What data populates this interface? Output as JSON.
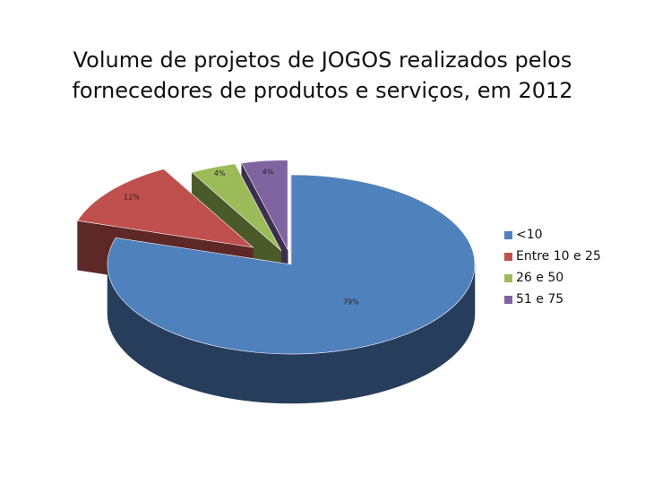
{
  "chart_data": {
    "type": "pie",
    "title": "Volume de projetos de JOGOS realizados pelos fornecedores de produtos e serviços, em 2012",
    "title_lines": [
      "Volume de projetos de JOGOS realizados pelos",
      "fornecedores de produtos e serviços, em 2012"
    ],
    "slices": [
      {
        "label": "<10",
        "value": 79,
        "data_label": "79%",
        "color": "#4F81BD",
        "side_color": "#263D5C"
      },
      {
        "label": "Entre 10 e 25",
        "value": 12,
        "data_label": "12%",
        "color": "#C0504D",
        "side_color": "#5E2826"
      },
      {
        "label": "26 e 50",
        "value": 4,
        "data_label": "4%",
        "color": "#9BBB59",
        "side_color": "#4A5A29"
      },
      {
        "label": "51 e 75",
        "value": 4,
        "data_label": "4%",
        "color": "#8064A2",
        "side_color": "#3C2F4D"
      }
    ],
    "legend_position": "right",
    "exploded": true,
    "three_d": true
  }
}
